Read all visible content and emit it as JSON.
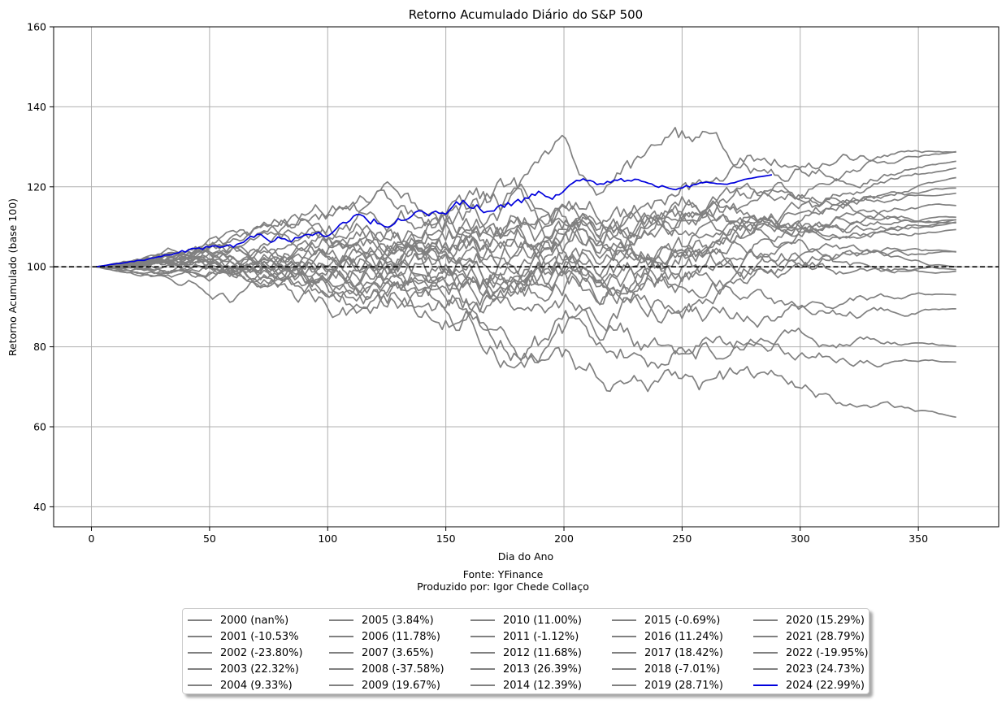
{
  "chart_data": {
    "type": "line",
    "title": "Retorno Acumulado Diário do S&P 500",
    "xlabel": "Dia do Ano",
    "ylabel": "Retorno Acumulado (base 100)",
    "xlim": [
      -16,
      384
    ],
    "ylim": [
      35,
      160
    ],
    "xticks": [
      0,
      50,
      100,
      150,
      200,
      250,
      300,
      350
    ],
    "yticks": [
      40,
      60,
      80,
      100,
      120,
      140,
      160
    ],
    "grid": true,
    "baseline": 100,
    "legend_position": "bottom-center",
    "source_note": "Fonte: YFinance",
    "author_note": "Produzido por: Igor Chede Collaço",
    "colors": {
      "default_series": "#808080",
      "highlight_series": "#0000dd",
      "baseline": "#000000",
      "grid": "#b0b0b0"
    },
    "series": [
      {
        "name": "2000 (nan%)",
        "final": 100.0,
        "last_day": 366
      },
      {
        "name": "2001 (-10.53%",
        "final": 89.5,
        "last_day": 366
      },
      {
        "name": "2002 (-23.80%)",
        "final": 76.2,
        "last_day": 366
      },
      {
        "name": "2003 (22.32%)",
        "final": 122.3,
        "last_day": 366
      },
      {
        "name": "2004 (9.33%)",
        "final": 109.3,
        "last_day": 366
      },
      {
        "name": "2005 (3.84%)",
        "final": 103.8,
        "last_day": 366
      },
      {
        "name": "2006 (11.78%)",
        "final": 111.8,
        "last_day": 366
      },
      {
        "name": "2007 (3.65%)",
        "final": 103.7,
        "last_day": 366
      },
      {
        "name": "2008 (-37.58%)",
        "final": 62.4,
        "last_day": 366
      },
      {
        "name": "2009 (19.67%)",
        "final": 119.7,
        "last_day": 366
      },
      {
        "name": "2010 (11.00%)",
        "final": 111.0,
        "last_day": 366
      },
      {
        "name": "2011 (-1.12%)",
        "final": 98.9,
        "last_day": 366
      },
      {
        "name": "2012 (11.68%)",
        "final": 111.7,
        "last_day": 366
      },
      {
        "name": "2013 (26.39%)",
        "final": 126.4,
        "last_day": 366
      },
      {
        "name": "2014 (12.39%)",
        "final": 112.4,
        "last_day": 366
      },
      {
        "name": "2015 (-0.69%)",
        "final": 99.3,
        "last_day": 366
      },
      {
        "name": "2016 (11.24%)",
        "final": 111.2,
        "last_day": 366
      },
      {
        "name": "2017 (18.42%)",
        "final": 118.4,
        "last_day": 366
      },
      {
        "name": "2018 (-7.01%)",
        "final": 93.0,
        "last_day": 366
      },
      {
        "name": "2019 (28.71%)",
        "final": 128.7,
        "last_day": 366
      },
      {
        "name": "2020 (15.29%)",
        "final": 115.3,
        "last_day": 366
      },
      {
        "name": "2021 (28.79%)",
        "final": 128.8,
        "last_day": 366
      },
      {
        "name": "2022 (-19.95%)",
        "final": 80.1,
        "last_day": 366
      },
      {
        "name": "2023 (24.73%)",
        "final": 124.7,
        "last_day": 366
      },
      {
        "name": "2024 (22.99%)",
        "final": 123.0,
        "last_day": 288,
        "highlight": true
      }
    ]
  }
}
